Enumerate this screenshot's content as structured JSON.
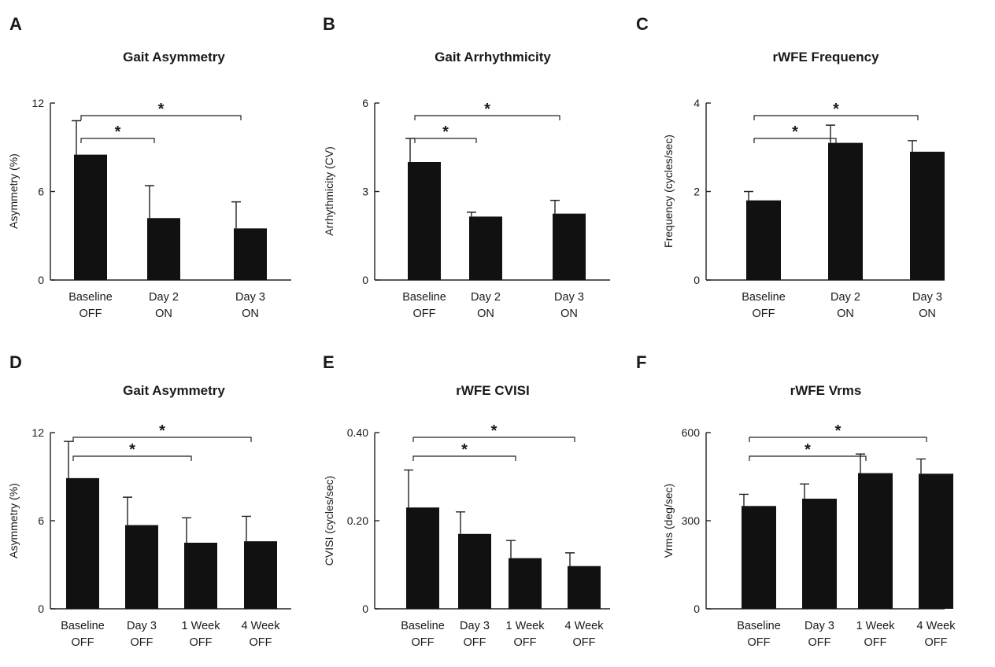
{
  "chart_data": [
    {
      "type": "bar",
      "panel": "A",
      "title": "Gait Asymmetry",
      "ylabel": "Asymmetry (%)",
      "ylim": [
        0,
        12
      ],
      "yticks": [
        "0",
        "6",
        "12"
      ],
      "categories": [
        [
          "Baseline",
          "OFF"
        ],
        [
          "Day 2",
          "ON"
        ],
        [
          "Day 3",
          "ON"
        ]
      ],
      "values": [
        8.5,
        4.2,
        3.5
      ],
      "errors": [
        2.3,
        2.2,
        1.8
      ],
      "significance": [
        {
          "from": 0,
          "to": 1,
          "label": "*"
        },
        {
          "from": 0,
          "to": 2,
          "label": "*"
        }
      ]
    },
    {
      "type": "bar",
      "panel": "B",
      "title": "Gait Arrhythmicity",
      "ylabel": "Arrhythmicity (CV)",
      "ylim": [
        0,
        6
      ],
      "yticks": [
        "0",
        "3",
        "6"
      ],
      "categories": [
        [
          "Baseline",
          "OFF"
        ],
        [
          "Day 2",
          "ON"
        ],
        [
          "Day 3",
          "ON"
        ]
      ],
      "values": [
        4.0,
        2.15,
        2.25
      ],
      "errors": [
        0.8,
        0.15,
        0.45
      ],
      "significance": [
        {
          "from": 0,
          "to": 1,
          "label": "*"
        },
        {
          "from": 0,
          "to": 2,
          "label": "*"
        }
      ]
    },
    {
      "type": "bar",
      "panel": "C",
      "title": "rWFE Frequency",
      "ylabel": "Frequency (cycles/sec)",
      "ylim": [
        0,
        4
      ],
      "yticks": [
        "0",
        "2",
        "4"
      ],
      "categories": [
        [
          "Baseline",
          "OFF"
        ],
        [
          "Day 2",
          "ON"
        ],
        [
          "Day 3",
          "ON"
        ]
      ],
      "values": [
        1.8,
        3.1,
        2.9
      ],
      "errors": [
        0.2,
        0.4,
        0.25
      ],
      "significance": [
        {
          "from": 0,
          "to": 1,
          "label": "*"
        },
        {
          "from": 0,
          "to": 2,
          "label": "*"
        }
      ]
    },
    {
      "type": "bar",
      "panel": "D",
      "title": "Gait Asymmetry",
      "ylabel": "Asymmetry (%)",
      "ylim": [
        0,
        12
      ],
      "yticks": [
        "0",
        "6",
        "12"
      ],
      "categories": [
        [
          "Baseline",
          "OFF"
        ],
        [
          "Day 3",
          "OFF"
        ],
        [
          "1 Week",
          "OFF"
        ],
        [
          "4 Week",
          "OFF"
        ]
      ],
      "values": [
        8.9,
        5.7,
        4.5,
        4.6
      ],
      "errors": [
        2.5,
        1.9,
        1.7,
        1.7
      ],
      "significance": [
        {
          "from": 0,
          "to": 2,
          "label": "*"
        },
        {
          "from": 0,
          "to": 3,
          "label": "*"
        }
      ]
    },
    {
      "type": "bar",
      "panel": "E",
      "title": "rWFE CVISI",
      "ylabel": "CVISI (cycles/sec)",
      "ylim": [
        0,
        0.4
      ],
      "yticks": [
        "0",
        "0.20",
        "0.40"
      ],
      "categories": [
        [
          "Baseline",
          "OFF"
        ],
        [
          "Day 3",
          "OFF"
        ],
        [
          "1 Week",
          "OFF"
        ],
        [
          "4 Week",
          "OFF"
        ]
      ],
      "values": [
        0.23,
        0.17,
        0.115,
        0.097
      ],
      "errors": [
        0.085,
        0.05,
        0.04,
        0.03
      ],
      "significance": [
        {
          "from": 0,
          "to": 2,
          "label": "*"
        },
        {
          "from": 0,
          "to": 3,
          "label": "*"
        }
      ]
    },
    {
      "type": "bar",
      "panel": "F",
      "title": "rWFE Vrms",
      "ylabel": "Vrms (deg/sec)",
      "ylim": [
        0,
        600
      ],
      "yticks": [
        "0",
        "300",
        "600"
      ],
      "categories": [
        [
          "Baseline",
          "OFF"
        ],
        [
          "Day 3",
          "OFF"
        ],
        [
          "1 Week",
          "OFF"
        ],
        [
          "4 Week",
          "OFF"
        ]
      ],
      "values": [
        350,
        375,
        462,
        460
      ],
      "errors": [
        40,
        50,
        65,
        50
      ],
      "significance": [
        {
          "from": 0,
          "to": 2,
          "label": "*"
        },
        {
          "from": 0,
          "to": 3,
          "label": "*"
        }
      ]
    }
  ]
}
